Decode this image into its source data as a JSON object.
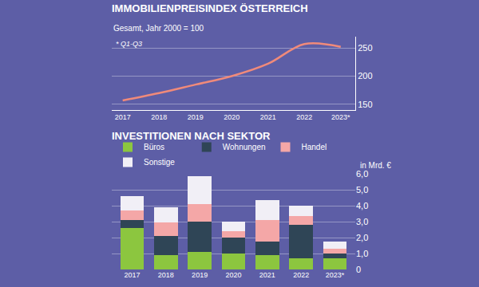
{
  "chart_data": [
    {
      "type": "line",
      "title": "IMMOBILIENPREISINDEX ÖSTERREICH",
      "subtitle": "Gesamt, Jahr 2000 = 100",
      "annotations": [
        "* Q1-Q3"
      ],
      "x": [
        2017,
        2018,
        2019,
        2020,
        2021,
        2022,
        2023
      ],
      "values": [
        157,
        170,
        185,
        200,
        222,
        257,
        252
      ],
      "color": "#f08a7a",
      "xlim": [
        2016.7,
        2023.4
      ],
      "xticks": [
        2017,
        2018,
        2019,
        2020,
        2021,
        2022,
        {
          "value": 2023,
          "label": "2023*"
        }
      ],
      "ylim": [
        140,
        270
      ],
      "yticks": [
        150,
        200,
        250
      ],
      "grid": true
    },
    {
      "type": "bar",
      "title": "INVESTITIONEN NACH SEKTOR",
      "ylabel": "in Mrd. €",
      "categories": [
        "2017",
        "2018",
        "2019",
        "2020",
        "2021",
        "2022",
        "2023*"
      ],
      "series": [
        {
          "name": "Büros",
          "color": "#8cc63f",
          "values": [
            2.6,
            0.9,
            1.1,
            1.0,
            0.9,
            0.7,
            0.7
          ]
        },
        {
          "name": "Wohnungen",
          "color": "#2f4556",
          "values": [
            0.5,
            1.2,
            1.9,
            1.0,
            0.85,
            2.1,
            0.3
          ]
        },
        {
          "name": "Handel",
          "color": "#f4a7a7",
          "values": [
            0.6,
            0.85,
            1.1,
            0.4,
            1.35,
            0.55,
            0.3
          ]
        },
        {
          "name": "Sonstige",
          "color": "#f1eff6",
          "values": [
            0.9,
            0.95,
            1.75,
            0.6,
            1.25,
            0.65,
            0.45
          ]
        }
      ],
      "stacked": true,
      "legend": "top",
      "ylim": [
        0,
        6
      ],
      "yticks": [
        0,
        {
          "value": 1,
          "label": "1,0"
        },
        {
          "value": 2,
          "label": "2,0"
        },
        {
          "value": 3,
          "label": "3,0"
        },
        {
          "value": 4,
          "label": "4,0"
        },
        {
          "value": 5,
          "label": "5,0"
        },
        {
          "value": 6,
          "label": "6,0"
        }
      ],
      "grid": true
    }
  ]
}
